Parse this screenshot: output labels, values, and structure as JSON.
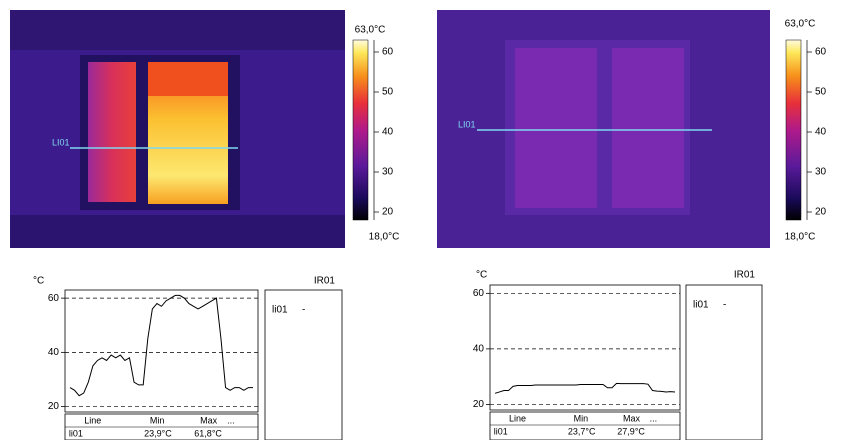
{
  "thermal_images": [
    {
      "line_label": "LI01",
      "colorbar": {
        "lim": [
          {
            "value": 18,
            "label": "18,0°C"
          },
          {
            "value": 63,
            "label": "63,0°C"
          }
        ],
        "ticks": [
          20,
          30,
          40,
          50,
          60
        ]
      }
    },
    {
      "line_label": "LI01",
      "colorbar": {
        "lim": [
          {
            "value": 18,
            "label": "18,0°C"
          },
          {
            "value": 63,
            "label": "63,0°C"
          }
        ],
        "ticks": [
          20,
          30,
          40,
          50,
          60
        ]
      }
    }
  ],
  "chart_data": [
    {
      "type": "line",
      "y_unit": "°C",
      "legend_title": "IR01",
      "x": [
        0,
        1,
        2,
        3,
        4,
        5,
        6,
        7,
        8,
        9,
        10,
        11,
        12,
        13,
        14,
        15,
        16,
        17,
        18,
        19,
        20,
        21,
        22,
        23,
        24,
        25,
        26,
        27,
        28,
        29,
        30,
        31,
        32,
        33,
        34,
        35,
        36,
        37,
        38,
        39,
        40
      ],
      "xlim": [
        0,
        40
      ],
      "ylim": [
        18,
        63
      ],
      "yticks": [
        20,
        40,
        60
      ],
      "grid": true,
      "series": [
        {
          "name": "li01",
          "color": "#000000",
          "legend_value": "-",
          "values": [
            27,
            26,
            24,
            25,
            29,
            35,
            37,
            38,
            37,
            39,
            38,
            39,
            37,
            38,
            29,
            28,
            28,
            45,
            56,
            58,
            57,
            59,
            60,
            61,
            61,
            60,
            58,
            57,
            56,
            57,
            58,
            59,
            60,
            45,
            27,
            26,
            27,
            27,
            26,
            27,
            27
          ]
        }
      ],
      "table": {
        "header": [
          "Line",
          "Min",
          "Max",
          "..."
        ],
        "rows": [
          [
            "li01",
            "23,9°C",
            "61,8°C"
          ]
        ]
      }
    },
    {
      "type": "line",
      "y_unit": "°C",
      "legend_title": "IR01",
      "x": [
        0,
        1,
        2,
        3,
        4,
        5,
        6,
        7,
        8,
        9,
        10,
        11,
        12,
        13,
        14,
        15,
        16,
        17,
        18,
        19,
        20,
        21,
        22,
        23,
        24,
        25,
        26,
        27,
        28,
        29,
        30,
        31,
        32,
        33,
        34,
        35,
        36,
        37,
        38,
        39,
        40
      ],
      "xlim": [
        0,
        40
      ],
      "ylim": [
        18,
        63
      ],
      "yticks": [
        20,
        40,
        60
      ],
      "grid": true,
      "series": [
        {
          "name": "li01",
          "color": "#000000",
          "legend_value": "-",
          "values": [
            24,
            24.5,
            25,
            25,
            26.5,
            26.8,
            26.8,
            26.8,
            26.8,
            27,
            27,
            27,
            27,
            27,
            27,
            27,
            27,
            27,
            27,
            27.2,
            27.2,
            27.2,
            27.2,
            27.2,
            27.2,
            26,
            26,
            27.6,
            27.5,
            27.5,
            27.5,
            27.5,
            27.5,
            27.5,
            27.3,
            25,
            24.8,
            24.7,
            24.5,
            24.6,
            24.5
          ]
        }
      ],
      "table": {
        "header": [
          "Line",
          "Min",
          "Max",
          "..."
        ],
        "rows": [
          [
            "li01",
            "23,7°C",
            "27,9°C"
          ]
        ]
      }
    }
  ]
}
